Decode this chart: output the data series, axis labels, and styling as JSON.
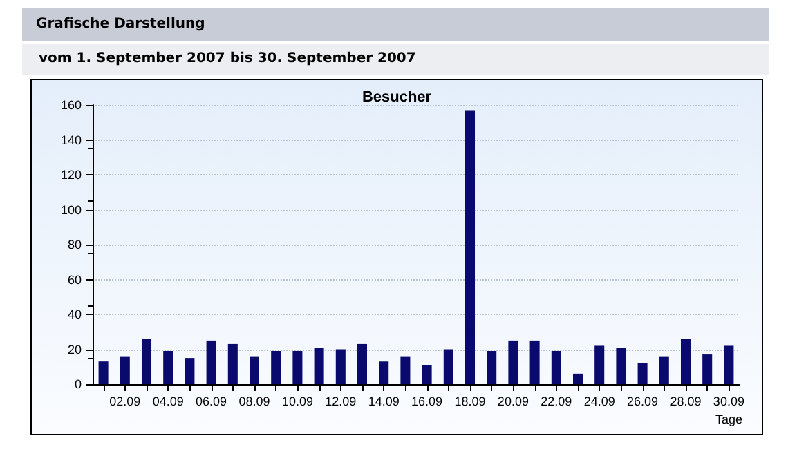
{
  "chart_data": {
    "type": "bar",
    "title": "Besucher",
    "xlabel": "Tage",
    "annotations": [
      "Grafische Darstellung",
      "vom 1. September 2007  bis 30. September 2007"
    ],
    "categories": [
      null,
      "02.09",
      null,
      "04.09",
      null,
      "06.09",
      null,
      "08.09",
      null,
      "10.09",
      null,
      "12.09",
      null,
      "14.09",
      null,
      "16.09",
      null,
      "18.09",
      null,
      "20.09",
      null,
      "22.09",
      null,
      "24.09",
      null,
      "26.09",
      null,
      "28.09",
      null,
      "30.09"
    ],
    "values": [
      13,
      16,
      26,
      19,
      15,
      25,
      23,
      16,
      19,
      19,
      21,
      20,
      23,
      13,
      16,
      11,
      20,
      157,
      19,
      25,
      25,
      19,
      6,
      22,
      21,
      12,
      16,
      26,
      17,
      22
    ],
    "color": "#0a0a6e",
    "ylim": [
      0,
      160
    ],
    "yticks": [
      0,
      20,
      40,
      60,
      80,
      100,
      120,
      140,
      160
    ],
    "grid": "y"
  }
}
